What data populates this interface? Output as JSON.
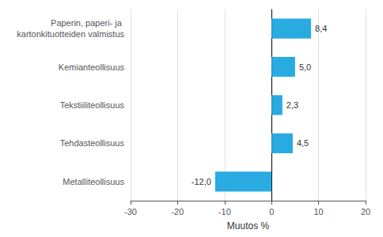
{
  "chart_data": {
    "type": "bar",
    "orientation": "horizontal",
    "categories": [
      "Metalliteollisuus",
      "Tehdasteollisuus",
      "Tekstiiliteollisuus",
      "Kemianteollisuus",
      "Paperin, paperi- ja kartonkituotteiden valmistus"
    ],
    "values": [
      -12.0,
      4.5,
      2.3,
      5.0,
      8.4
    ],
    "value_labels": [
      "-12,0",
      "4,5",
      "2,3",
      "5,0",
      "8,4"
    ],
    "data_labels": true,
    "color": "#29ABE2",
    "xlabel": "Muutos %",
    "xlim": [
      -30,
      20
    ],
    "xticks": [
      -30,
      -20,
      -10,
      0,
      10,
      20
    ],
    "grid": true
  }
}
